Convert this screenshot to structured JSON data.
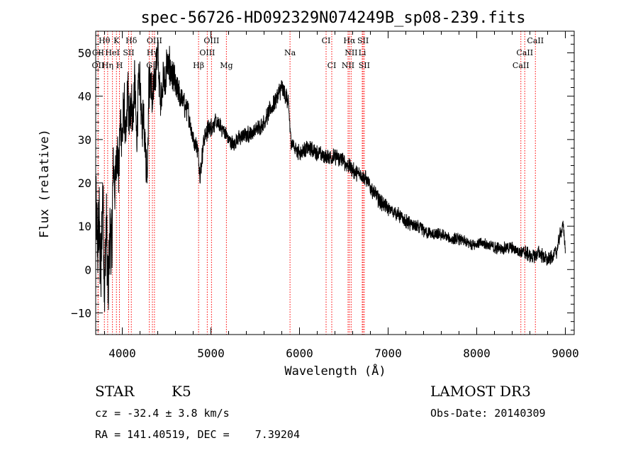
{
  "chart_data": {
    "type": "line",
    "title": "spec-56726-HD092329N074249B_sp08-239.fits",
    "xlabel": "Wavelength (Å)",
    "ylabel": "Flux (relative)",
    "xlim": [
      3700,
      9100
    ],
    "ylim": [
      -15,
      55
    ],
    "xticks": [
      4000,
      5000,
      6000,
      7000,
      8000,
      9000
    ],
    "yticks": [
      -10,
      0,
      10,
      20,
      30,
      40,
      50
    ],
    "series": [
      {
        "name": "flux",
        "anchors_x": [
          3700,
          3720,
          3740,
          3760,
          3780,
          3800,
          3820,
          3840,
          3860,
          3880,
          3900,
          3920,
          3940,
          3960,
          3980,
          4000,
          4020,
          4040,
          4060,
          4080,
          4100,
          4120,
          4140,
          4160,
          4180,
          4200,
          4220,
          4240,
          4260,
          4280,
          4300,
          4320,
          4340,
          4360,
          4380,
          4400,
          4420,
          4440,
          4460,
          4480,
          4500,
          4550,
          4600,
          4650,
          4700,
          4750,
          4800,
          4850,
          4880,
          4920,
          4960,
          5000,
          5050,
          5100,
          5150,
          5200,
          5250,
          5300,
          5400,
          5500,
          5600,
          5700,
          5750,
          5800,
          5850,
          5880,
          5900,
          5950,
          6000,
          6100,
          6200,
          6300,
          6400,
          6500,
          6550,
          6600,
          6650,
          6700,
          6750,
          6800,
          6900,
          7000,
          7100,
          7200,
          7300,
          7400,
          7500,
          7600,
          7700,
          7800,
          7900,
          8000,
          8100,
          8200,
          8300,
          8400,
          8500,
          8550,
          8600,
          8650,
          8700,
          8750,
          8800,
          8850,
          8900,
          8950,
          8980,
          9000
        ],
        "anchors_y": [
          15,
          5,
          10,
          -3,
          20,
          -5,
          12,
          -8,
          10,
          4,
          25,
          18,
          30,
          22,
          35,
          30,
          38,
          28,
          42,
          33,
          40,
          35,
          44,
          30,
          40,
          45,
          32,
          38,
          28,
          22,
          42,
          45,
          38,
          42,
          48,
          50,
          42,
          40,
          45,
          42,
          47,
          46,
          42,
          40,
          38,
          36,
          30,
          28,
          22,
          30,
          32,
          33,
          34,
          33,
          32,
          30,
          29,
          30,
          31,
          32,
          34,
          38,
          40,
          42,
          40,
          37,
          30,
          28,
          27,
          28,
          27,
          26,
          26,
          25,
          24,
          23,
          22,
          22,
          21,
          19,
          16,
          14,
          13,
          11,
          10,
          9,
          8,
          8,
          7,
          7,
          6,
          6,
          6,
          5,
          5,
          5,
          4,
          4,
          3,
          3,
          4,
          3,
          2,
          3,
          4,
          9,
          10,
          4
        ],
        "noise_amplitude": [
          22,
          22,
          22,
          22,
          22,
          22,
          22,
          22,
          22,
          20,
          18,
          16,
          15,
          14,
          14,
          14,
          14,
          14,
          14,
          13,
          13,
          13,
          13,
          13,
          13,
          12,
          12,
          12,
          12,
          12,
          12,
          12,
          12,
          12,
          12,
          12,
          11,
          11,
          11,
          11,
          11,
          10,
          8,
          7,
          6,
          6,
          5,
          5,
          5,
          5,
          5,
          5,
          4,
          4,
          4,
          4,
          4,
          4,
          4,
          4,
          4,
          5,
          5,
          5,
          5,
          5,
          4,
          4,
          4,
          4,
          4,
          4,
          4,
          4,
          4,
          4,
          4,
          4,
          4,
          4,
          4,
          3.5,
          3.5,
          3.5,
          3.5,
          3.5,
          3,
          3,
          3,
          3,
          3,
          3,
          3,
          3,
          3,
          3,
          3,
          3.5,
          3.5,
          3.5,
          3.5,
          3.5,
          3.5,
          3.5,
          3.5,
          3.5,
          3.5,
          3.5
        ]
      }
    ],
    "lines": [
      {
        "label": "Hθ",
        "wave": 3798,
        "row": 0
      },
      {
        "label": "K",
        "wave": 3934,
        "row": 0
      },
      {
        "label": "Hδ",
        "wave": 4102,
        "row": 0
      },
      {
        "label": "OIII",
        "wave": 4363,
        "row": 0
      },
      {
        "label": "OIII",
        "wave": 5007,
        "row": 0
      },
      {
        "label": "CI",
        "wave": 6300,
        "row": 0
      },
      {
        "label": "Hα",
        "wave": 6563,
        "row": 0
      },
      {
        "label": "SII",
        "wave": 6717,
        "row": 0
      },
      {
        "label": "CaII",
        "wave": 8662,
        "row": 0
      },
      {
        "label": "CII",
        "wave": 3727,
        "row": 1
      },
      {
        "label": "HeI",
        "wave": 3889,
        "row": 1
      },
      {
        "label": "SII",
        "wave": 4072,
        "row": 1
      },
      {
        "label": "Hγ",
        "wave": 4340,
        "row": 1
      },
      {
        "label": "OIII",
        "wave": 4959,
        "row": 1
      },
      {
        "label": "Na",
        "wave": 5893,
        "row": 1
      },
      {
        "label": "NII",
        "wave": 6583,
        "row": 1
      },
      {
        "label": "Li",
        "wave": 6708,
        "row": 1
      },
      {
        "label": "CaII",
        "wave": 8542,
        "row": 1
      },
      {
        "label": "OII",
        "wave": 3727,
        "row": 2
      },
      {
        "label": "Hη",
        "wave": 3835,
        "row": 2
      },
      {
        "label": "H",
        "wave": 3968,
        "row": 2
      },
      {
        "label": "G",
        "wave": 4305,
        "row": 2
      },
      {
        "label": "Hβ",
        "wave": 4861,
        "row": 2
      },
      {
        "label": "Mg",
        "wave": 5175,
        "row": 2
      },
      {
        "label": "CI",
        "wave": 6364,
        "row": 2
      },
      {
        "label": "NII",
        "wave": 6548,
        "row": 2
      },
      {
        "label": "SII",
        "wave": 6731,
        "row": 2
      },
      {
        "label": "CaII",
        "wave": 8498,
        "row": 2
      }
    ],
    "line_color": "#ff0000",
    "grid": false
  },
  "info": {
    "class": "STAR",
    "subclass": "K5",
    "survey": "LAMOST DR3",
    "cz": "cz = -32.4 ± 3.8 km/s",
    "obs_date": "Obs-Date: 20140309",
    "radec": "RA = 141.40519, DEC =    7.39204"
  }
}
